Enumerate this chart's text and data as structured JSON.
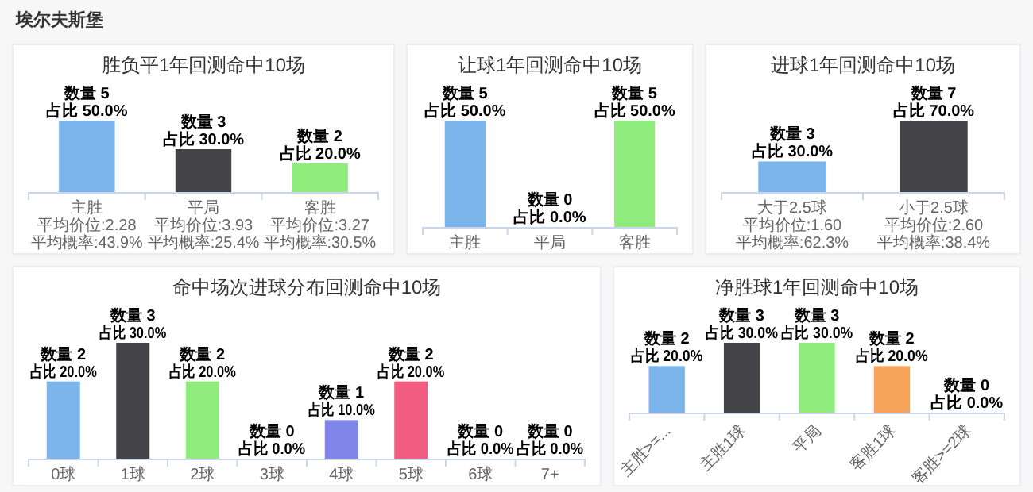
{
  "chart_data": [
    {
      "type": "bar",
      "title": "胜负平1年回测命中10场",
      "annotations": [
        "埃尔夫斯堡",
        "平均价位:2.28",
        "平均概率:43.9%",
        "平均价位:3.93",
        "平均概率:25.4%",
        "平均价位:3.27",
        "平均概率:30.5%"
      ],
      "categories": [
        "主胜",
        "平局",
        "客胜"
      ],
      "values": [
        5,
        3,
        2
      ],
      "colors": [
        "#7cb5ec",
        "#434348",
        "#90ed7d"
      ],
      "value_labels": [
        "数量 5\n占比 50.0%",
        "数量 3\n占比 30.0%",
        "数量 2\n占比 20.0%"
      ]
    },
    {
      "type": "bar",
      "title": "让球1年回测命中10场",
      "categories": [
        "主胜",
        "平局",
        "客胜"
      ],
      "values": [
        5,
        0,
        5
      ],
      "colors": [
        "#7cb5ec",
        "#434348",
        "#90ed7d"
      ],
      "value_labels": [
        "数量 5\n占比 50.0%",
        "数量 0\n占比 0.0%",
        "数量 5\n占比 50.0%"
      ]
    },
    {
      "type": "bar",
      "title": "进球1年回测命中10场",
      "annotations": [
        "平均价位:1.60",
        "平均概率:62.3%",
        "平均价位:2.60",
        "平均概率:38.4%"
      ],
      "categories": [
        "大于2.5球",
        "小于2.5球"
      ],
      "values": [
        3,
        7
      ],
      "colors": [
        "#7cb5ec",
        "#434348"
      ],
      "value_labels": [
        "数量 3\n占比 30.0%",
        "数量 7\n占比 70.0%"
      ]
    },
    {
      "type": "bar",
      "title": "命中场次进球分布回测命中10场",
      "categories": [
        "0球",
        "1球",
        "2球",
        "3球",
        "4球",
        "5球",
        "6球",
        "7+"
      ],
      "values": [
        2,
        3,
        2,
        0,
        1,
        2,
        0,
        0
      ],
      "colors": [
        "#7cb5ec",
        "#434348",
        "#90ed7d",
        "#f7a35c",
        "#8085e9",
        "#f15c80",
        "#e4d354",
        "#2b908f"
      ],
      "value_labels": [
        "数量 2\n占比 20.0%",
        "数量 3\n占比 30.0%",
        "数量 2\n占比 20.0%",
        "数量 0\n占比 0.0%",
        "数量 1\n占比 10.0%",
        "数量 2\n占比 20.0%",
        "数量 0\n占比 0.0%",
        "数量 0\n占比 0.0%"
      ]
    },
    {
      "type": "bar",
      "title": "净胜球1年回测命中10场",
      "categories": [
        "主胜>=...",
        "主胜1球",
        "平局",
        "客胜1球",
        "客胜>=2球"
      ],
      "values": [
        2,
        3,
        3,
        2,
        0
      ],
      "colors": [
        "#7cb5ec",
        "#434348",
        "#90ed7d",
        "#f7a35c",
        "#8085e9"
      ],
      "value_labels": [
        "数量 2\n占比 20.0%",
        "数量 3\n占比 30.0%",
        "数量 3\n占比 30.0%",
        "数量 2\n占比 20.0%",
        "数量 0\n占比 0.0%"
      ]
    }
  ]
}
